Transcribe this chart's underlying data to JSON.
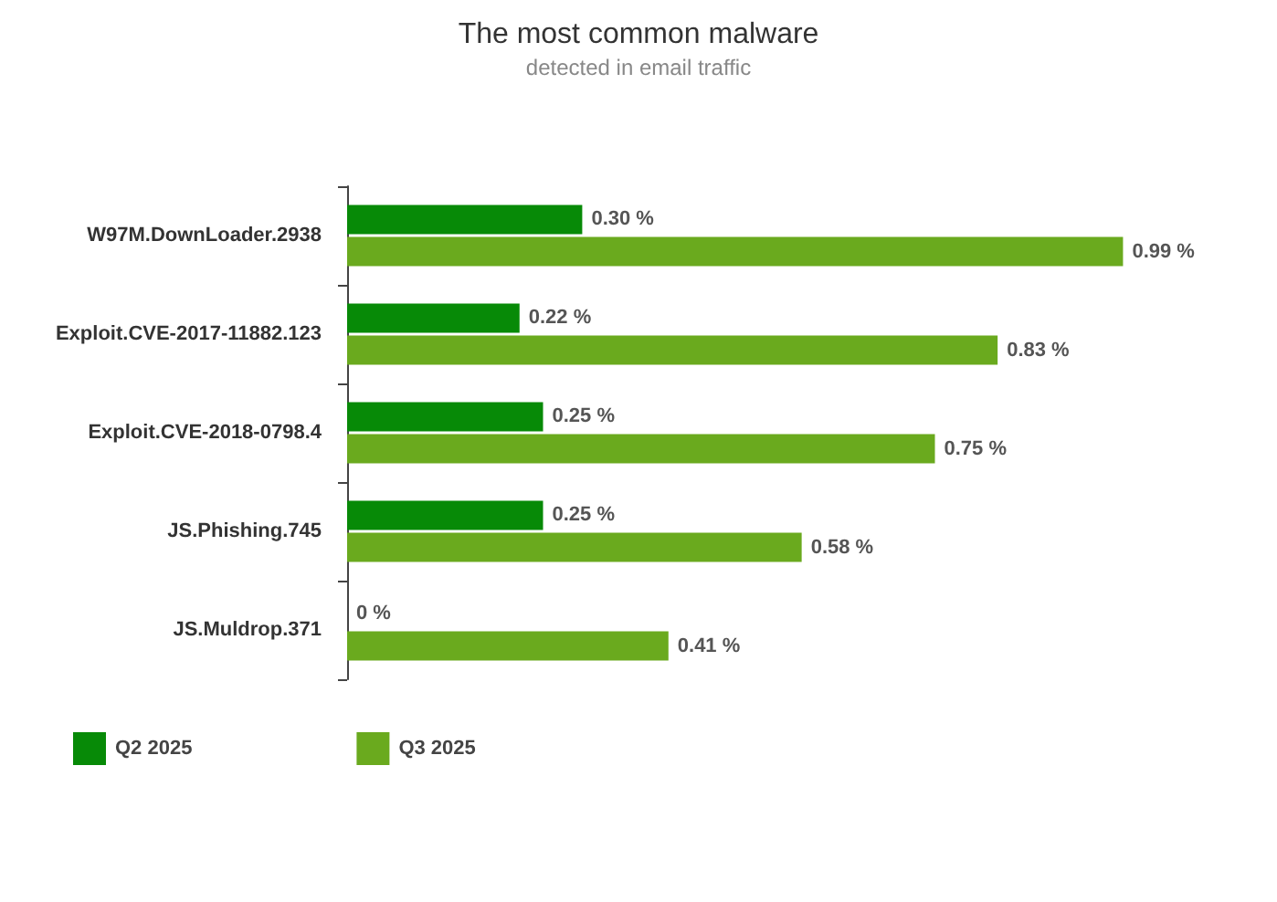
{
  "chart_data": {
    "type": "bar",
    "orientation": "horizontal",
    "title": "The most common malware",
    "subtitle": "detected in email traffic",
    "categories": [
      "W97M.DownLoader.2938",
      "Exploit.CVE-2017-11882.123",
      "Exploit.CVE-2018-0798.4",
      "JS.Phishing.745",
      "JS.Muldrop.371"
    ],
    "series": [
      {
        "name": "Q2 2025",
        "color": "#078a07",
        "values": [
          0.3,
          0.22,
          0.25,
          0.25,
          0
        ],
        "value_labels": [
          "0.30 %",
          "0.22 %",
          "0.25 %",
          "0.25 %",
          "0 %"
        ]
      },
      {
        "name": "Q3 2025",
        "color": "#6aaa1e",
        "values": [
          0.99,
          0.83,
          0.75,
          0.58,
          0.41
        ],
        "value_labels": [
          "0.99 %",
          "0.83 %",
          "0.75 %",
          "0.58 %",
          "0.41 %"
        ]
      }
    ],
    "legend": "bottom left",
    "grid": false
  }
}
